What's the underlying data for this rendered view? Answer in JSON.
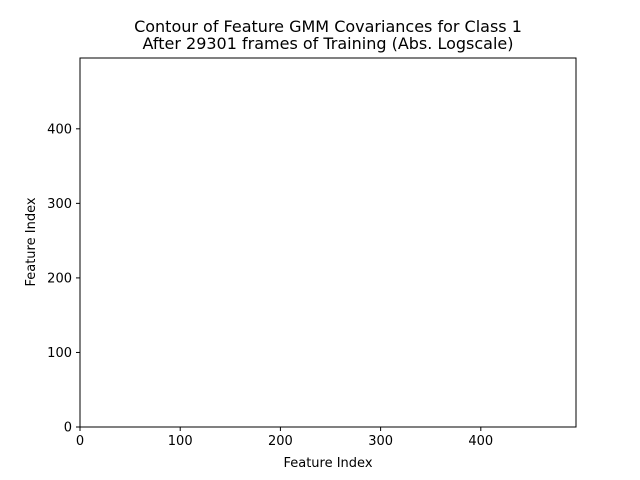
{
  "chart_data": {
    "type": "heatmap",
    "title_line1": "Contour of Feature GMM Covariances for Class 1",
    "title_line2": "After 29301 frames of Training (Abs. Logscale)",
    "xlabel": "Feature Index",
    "ylabel": "Feature Index",
    "xlim": [
      0,
      495
    ],
    "ylim": [
      0,
      495
    ],
    "xticks": [
      0,
      100,
      200,
      300,
      400
    ],
    "yticks": [
      0,
      100,
      200,
      300,
      400
    ],
    "grid": false,
    "values": []
  }
}
